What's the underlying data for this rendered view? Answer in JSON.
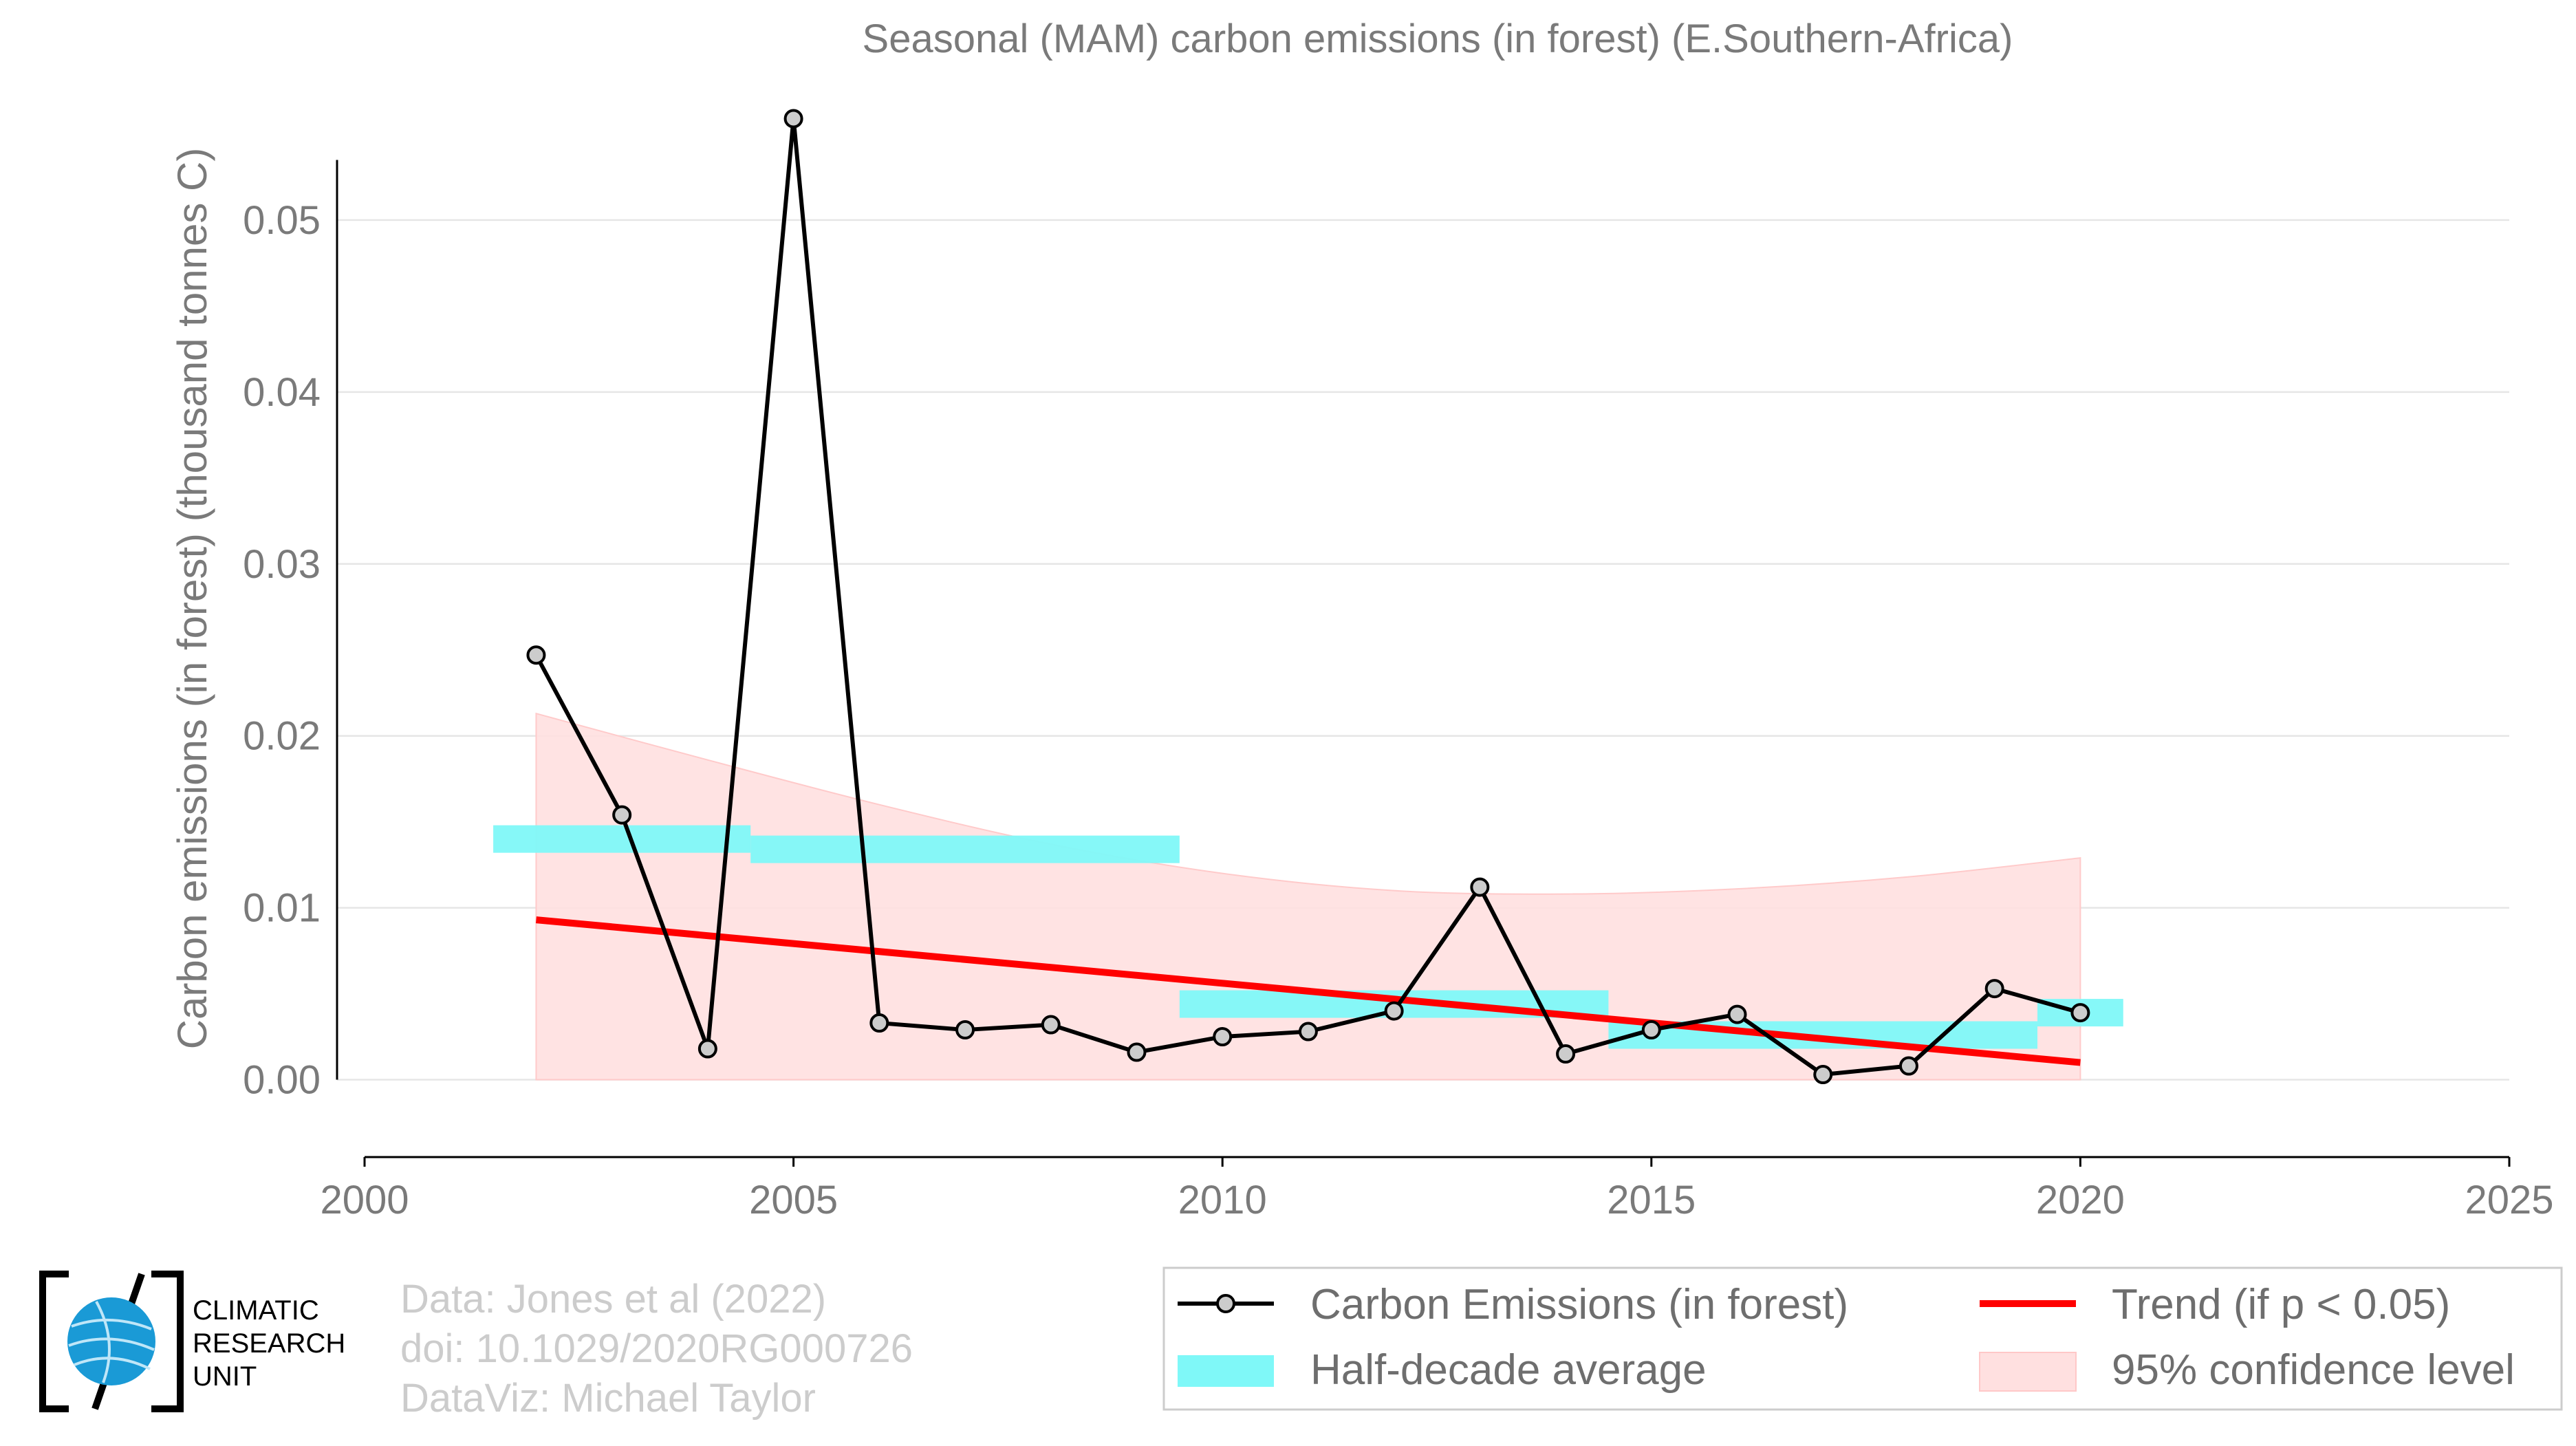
{
  "chart_data": {
    "type": "line",
    "title": "Seasonal (MAM) carbon emissions (in forest) (E.Southern-Africa)",
    "ylabel": "Carbon emissions (in forest) (thousand tonnes C)",
    "xlabel": "",
    "xlim": [
      2000,
      2025
    ],
    "ylim": [
      -0.0045,
      0.058
    ],
    "xticks": [
      "2000",
      "2005",
      "2010",
      "2015",
      "2020",
      "2025"
    ],
    "yticks": [
      "0.00",
      "0.01",
      "0.02",
      "0.03",
      "0.04",
      "0.05"
    ],
    "grid": true,
    "legend_position": "bottom-right",
    "series": [
      {
        "name": "Carbon Emissions (in forest)",
        "color": "#000000",
        "x": [
          2002,
          2003,
          2004,
          2005,
          2006,
          2007,
          2008,
          2009,
          2010,
          2011,
          2012,
          2013,
          2014,
          2015,
          2016,
          2017,
          2018,
          2019,
          2020
        ],
        "y": [
          0.0247,
          0.0154,
          0.0018,
          0.0559,
          0.0033,
          0.0029,
          0.0032,
          0.0016,
          0.0025,
          0.0028,
          0.004,
          0.0112,
          0.0015,
          0.0029,
          0.0038,
          0.0003,
          0.0008,
          0.0053,
          0.0039
        ]
      }
    ],
    "half_decade_average": {
      "name": "Half-decade average",
      "color": "#7ff8f8",
      "segments": [
        {
          "x0": 2001.5,
          "x1": 2004.5,
          "y": 0.014
        },
        {
          "x0": 2004.5,
          "x1": 2009.5,
          "y": 0.0134
        },
        {
          "x0": 2009.5,
          "x1": 2014.5,
          "y": 0.0044
        },
        {
          "x0": 2014.5,
          "x1": 2019.5,
          "y": 0.0026
        },
        {
          "x0": 2019.5,
          "x1": 2020.5,
          "y": 0.0039
        }
      ]
    },
    "trend": {
      "name": "Trend (if p < 0.05)",
      "color": "#ff0000",
      "x": [
        2002,
        2020
      ],
      "y": [
        0.0093,
        0.001
      ]
    },
    "confidence_band": {
      "name": "95% confidence level",
      "color": "#ffe0e0",
      "x": [
        2002,
        2004,
        2006,
        2008,
        2010,
        2012,
        2014,
        2016,
        2018,
        2020
      ],
      "upper": [
        0.0213,
        0.0186,
        0.016,
        0.0137,
        0.012,
        0.011,
        0.0108,
        0.0111,
        0.0118,
        0.0129
      ],
      "lower": [
        0.0,
        0.0,
        0.0,
        0.0,
        0.0,
        0.0,
        0.0,
        0.0,
        0.0,
        0.0
      ]
    }
  },
  "credits": [
    "Data: Jones et al (2022)",
    "doi: 10.1029/2020RG000726",
    "DataViz: Michael Taylor"
  ],
  "logo": {
    "lines": [
      "CLIMATIC",
      "RESEARCH",
      "UNIT"
    ],
    "icon": "globe-icon"
  },
  "legend": {
    "items": [
      {
        "key": "emissions",
        "label": "Carbon Emissions (in forest)"
      },
      {
        "key": "trend",
        "label": "Trend (if p < 0.05)"
      },
      {
        "key": "halfdecade",
        "label": "Half-decade average"
      },
      {
        "key": "confidence",
        "label": "95% confidence level"
      }
    ]
  }
}
